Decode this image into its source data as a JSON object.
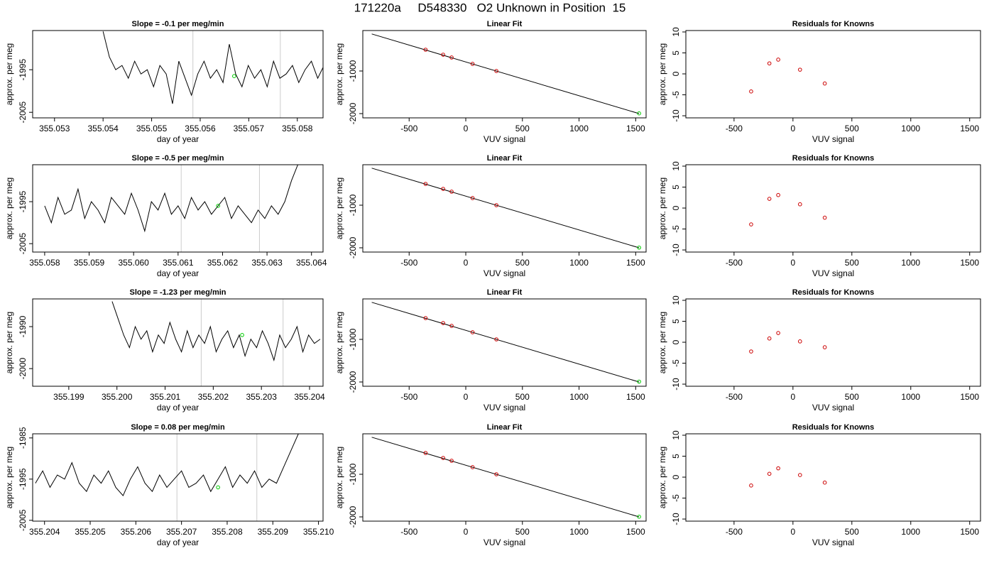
{
  "title": "171220a     D548330   O2 Unknown in Position  15",
  "chart_data": [
    {
      "type": "line",
      "title": "Slope =  -0.1  per meg/min",
      "xlabel": "day of year",
      "ylabel": "approx. per meg",
      "xlim": [
        355.05255,
        355.05853
      ],
      "ylim": [
        -2006.3,
        -1985.8
      ],
      "xticks": [
        355.053,
        355.054,
        355.055,
        355.056,
        355.057,
        355.058
      ],
      "yticks": [
        -2005,
        -1995
      ],
      "vlines": [
        355.05585,
        355.05765
      ],
      "vline_color": "#cccccc",
      "x": [
        355.054,
        355.05413,
        355.05426,
        355.05439,
        355.05452,
        355.05465,
        355.05478,
        355.05491,
        355.05504,
        355.05517,
        355.0553,
        355.05543,
        355.05556,
        355.05569,
        355.05582,
        355.05595,
        355.05608,
        355.05621,
        355.05634,
        355.05647,
        355.0566,
        355.05673,
        355.05686,
        355.05699,
        355.05712,
        355.05725,
        355.05738,
        355.05751,
        355.05764,
        355.05777,
        355.0579,
        355.05803,
        355.05816,
        355.05829,
        355.05842,
        355.05855,
        355.05868
      ],
      "series": [
        {
          "color": "#000000",
          "style": "line",
          "values": [
            -1986,
            -1992,
            -1995,
            -1994,
            -1997,
            -1993,
            -1996,
            -1995,
            -1999,
            -1994,
            -1996,
            -2003,
            -1993,
            -1997,
            -2001,
            -1996,
            -1993,
            -1997,
            -1995,
            -1998,
            -1989,
            -1996,
            -1999,
            -1994,
            -1997,
            -1995,
            -1999,
            -1993,
            -1997,
            -1996,
            -1994,
            -1998,
            -1995,
            -1993,
            -1997,
            -1994,
            -1996
          ]
        },
        {
          "color": "#00cc00",
          "style": "points",
          "x": [
            355.0567
          ],
          "values": [
            -1996.5
          ]
        }
      ]
    },
    {
      "type": "scatter",
      "title": "Linear Fit",
      "xlabel": "VUV signal",
      "ylabel": "approx. per meg",
      "xlim": [
        -909,
        1592
      ],
      "ylim": [
        -2100,
        -50
      ],
      "xticks": [
        -500,
        0,
        500,
        1000,
        1500
      ],
      "yticks": [
        -2000,
        -1000
      ],
      "series": [
        {
          "color": "#000000",
          "style": "line",
          "x": [
            -830,
            1530
          ],
          "values": [
            -130,
            -2000
          ]
        },
        {
          "color": "#cc0000",
          "style": "points",
          "x": [
            -355,
            -200,
            -125,
            60,
            270
          ],
          "values": [
            -500,
            -617,
            -683,
            -833,
            -1000
          ]
        },
        {
          "color": "#00cc00",
          "style": "points",
          "x": [
            1530
          ],
          "values": [
            -1995
          ]
        }
      ]
    },
    {
      "type": "scatter",
      "title": "Residuals for Knowns",
      "xlabel": "VUV signal",
      "ylabel": "approx. per meg",
      "xlim": [
        -909,
        1592
      ],
      "ylim": [
        -10.5,
        10.34
      ],
      "xticks": [
        -500,
        0,
        500,
        1000,
        1500
      ],
      "yticks": [
        -10,
        -5,
        0,
        5,
        10
      ],
      "series": [
        {
          "color": "#cc0000",
          "style": "points",
          "x": [
            -355,
            -200,
            -125,
            60,
            270
          ],
          "values": [
            -4.2,
            2.5,
            3.4,
            1,
            -2.3
          ]
        }
      ]
    },
    {
      "type": "line",
      "title": "Slope =  -0.5  per meg/min",
      "xlabel": "day of year",
      "ylabel": "approx. per meg",
      "xlim": [
        355.05773,
        355.06426
      ],
      "ylim": [
        -2007.0,
        -1986.2
      ],
      "xticks": [
        355.058,
        355.059,
        {
          "value": 355.06,
          "label": "355.060"
        },
        355.061,
        355.062,
        355.063,
        355.064
      ],
      "yticks": [
        -2005,
        -1995
      ],
      "vlines": [
        355.06107,
        355.06283
      ],
      "vline_color": "#cccccc",
      "x": [
        355.058,
        355.05815,
        355.0583,
        355.05845,
        355.0586,
        355.05875,
        355.0589,
        355.05905,
        355.0592,
        355.05935,
        355.0595,
        355.05965,
        355.0598,
        355.05995,
        355.0601,
        355.06025,
        355.0604,
        355.06055,
        355.0607,
        355.06085,
        355.061,
        355.06115,
        355.0613,
        355.06145,
        355.0616,
        355.06175,
        355.0619,
        355.06205,
        355.0622,
        355.06235,
        355.0625,
        355.06265,
        355.0628,
        355.06295,
        355.0631,
        355.06325,
        355.0634,
        355.06355,
        355.0637
      ],
      "series": [
        {
          "color": "#000000",
          "style": "line",
          "values": [
            -1996,
            -2000,
            -1994,
            -1998,
            -1997,
            -1992,
            -1999,
            -1995,
            -1997,
            -2000,
            -1994,
            -1996,
            -1998,
            -1993,
            -1997,
            -2002,
            -1995,
            -1997,
            -1993,
            -1998,
            -1996,
            -1999,
            -1994,
            -1997,
            -1995,
            -1998,
            -1996,
            -1994,
            -1999,
            -1996,
            -1998,
            -2000,
            -1997,
            -1999,
            -1996,
            -1998,
            -1995,
            -1990,
            -1986
          ]
        },
        {
          "color": "#00cc00",
          "style": "points",
          "x": [
            355.0619
          ],
          "values": [
            -1996
          ]
        }
      ]
    },
    {
      "type": "scatter",
      "title": "Linear Fit",
      "xlabel": "VUV signal",
      "ylabel": "approx. per meg",
      "xlim": [
        -909,
        1592
      ],
      "ylim": [
        -2100,
        -50
      ],
      "xticks": [
        -500,
        0,
        500,
        1000,
        1500
      ],
      "yticks": [
        -2000,
        -1000
      ],
      "series": [
        {
          "color": "#000000",
          "style": "line",
          "x": [
            -830,
            1530
          ],
          "values": [
            -130,
            -2000
          ]
        },
        {
          "color": "#cc0000",
          "style": "points",
          "x": [
            -355,
            -200,
            -125,
            60,
            270
          ],
          "values": [
            -500,
            -617,
            -683,
            -833,
            -1000
          ]
        },
        {
          "color": "#00cc00",
          "style": "points",
          "x": [
            1530
          ],
          "values": [
            -1996
          ]
        }
      ]
    },
    {
      "type": "scatter",
      "title": "Residuals for Knowns",
      "xlabel": "VUV signal",
      "ylabel": "approx. per meg",
      "xlim": [
        -909,
        1592
      ],
      "ylim": [
        -10.5,
        10.34
      ],
      "xticks": [
        -500,
        0,
        500,
        1000,
        1500
      ],
      "yticks": [
        -10,
        -5,
        0,
        5,
        10
      ],
      "series": [
        {
          "color": "#cc0000",
          "style": "points",
          "x": [
            -355,
            -200,
            -125,
            60,
            270
          ],
          "values": [
            -3.9,
            2.2,
            3.1,
            0.9,
            -2.3
          ]
        }
      ]
    },
    {
      "type": "line",
      "title": "Slope =  -1.23  per meg/min",
      "xlabel": "day of year",
      "ylabel": "approx. per meg",
      "xlim": [
        355.19825,
        355.20428
      ],
      "ylim": [
        -2004.2,
        -1983.4
      ],
      "xticks": [
        355.199,
        {
          "value": 355.2,
          "label": "355.200"
        },
        355.201,
        355.202,
        355.203,
        355.204
      ],
      "yticks": [
        -2000,
        -1990
      ],
      "vlines": [
        355.20175,
        355.20345
      ],
      "vline_color": "#cccccc",
      "x": [
        355.1999,
        355.20002,
        355.20014,
        355.20026,
        355.20038,
        355.2005,
        355.20062,
        355.20074,
        355.20086,
        355.20098,
        355.2011,
        355.20122,
        355.20134,
        355.20146,
        355.20158,
        355.2017,
        355.20182,
        355.20194,
        355.20206,
        355.20218,
        355.2023,
        355.20242,
        355.20254,
        355.20266,
        355.20278,
        355.2029,
        355.20302,
        355.20314,
        355.20326,
        355.20338,
        355.2035,
        355.20362,
        355.20374,
        355.20386,
        355.20398,
        355.2041,
        355.20422
      ],
      "series": [
        {
          "color": "#000000",
          "style": "line",
          "values": [
            -1984,
            -1988,
            -1992,
            -1995,
            -1990,
            -1993,
            -1991,
            -1996,
            -1992,
            -1994,
            -1989,
            -1993,
            -1996,
            -1991,
            -1995,
            -1992,
            -1994,
            -1990,
            -1996,
            -1993,
            -1991,
            -1995,
            -1992,
            -1997,
            -1993,
            -1995,
            -1991,
            -1994,
            -1998,
            -1992,
            -1995,
            -1993,
            -1990,
            -1996,
            -1992,
            -1994,
            -1993
          ]
        },
        {
          "color": "#00cc00",
          "style": "points",
          "x": [
            355.2026
          ],
          "values": [
            -1992
          ]
        }
      ]
    },
    {
      "type": "scatter",
      "title": "Linear Fit",
      "xlabel": "VUV signal",
      "ylabel": "approx. per meg",
      "xlim": [
        -909,
        1592
      ],
      "ylim": [
        -2100,
        -50
      ],
      "xticks": [
        -500,
        0,
        500,
        1000,
        1500
      ],
      "yticks": [
        -2000,
        -1000
      ],
      "series": [
        {
          "color": "#000000",
          "style": "line",
          "x": [
            -830,
            1530
          ],
          "values": [
            -130,
            -2000
          ]
        },
        {
          "color": "#cc0000",
          "style": "points",
          "x": [
            -355,
            -200,
            -125,
            60,
            270
          ],
          "values": [
            -500,
            -617,
            -683,
            -833,
            -1000
          ]
        },
        {
          "color": "#00cc00",
          "style": "points",
          "x": [
            1530
          ],
          "values": [
            -1992
          ]
        }
      ]
    },
    {
      "type": "scatter",
      "title": "Residuals for Knowns",
      "xlabel": "VUV signal",
      "ylabel": "approx. per meg",
      "xlim": [
        -909,
        1592
      ],
      "ylim": [
        -10.5,
        10.34
      ],
      "xticks": [
        -500,
        0,
        500,
        1000,
        1500
      ],
      "yticks": [
        -10,
        -5,
        0,
        5,
        10
      ],
      "series": [
        {
          "color": "#cc0000",
          "style": "points",
          "x": [
            -355,
            -200,
            -125,
            60,
            270
          ],
          "values": [
            -2.2,
            0.9,
            2.2,
            0.2,
            -1.2
          ]
        }
      ]
    },
    {
      "type": "line",
      "title": "Slope =  0.08  per meg/min",
      "xlabel": "day of year",
      "ylabel": "approx. per meg",
      "xlim": [
        355.20374,
        355.2101
      ],
      "ylim": [
        -2005.2,
        -1984.0
      ],
      "xticks": [
        355.204,
        355.205,
        355.206,
        355.207,
        355.208,
        355.209,
        {
          "value": 355.21,
          "label": "355.210"
        }
      ],
      "yticks": [
        -2005,
        -1995,
        -1985
      ],
      "vlines": [
        355.2069,
        355.20865
      ],
      "vline_color": "#cccccc",
      "x": [
        355.2038,
        355.20396,
        355.20412,
        355.20428,
        355.20444,
        355.2046,
        355.20476,
        355.20492,
        355.20508,
        355.20524,
        355.2054,
        355.20556,
        355.20572,
        355.20588,
        355.20604,
        355.2062,
        355.20636,
        355.20652,
        355.20668,
        355.20684,
        355.207,
        355.20716,
        355.20732,
        355.20748,
        355.20764,
        355.2078,
        355.20796,
        355.20812,
        355.20828,
        355.20844,
        355.2086,
        355.20876,
        355.20892,
        355.20908,
        355.20924,
        355.2094,
        355.20956
      ],
      "series": [
        {
          "color": "#000000",
          "style": "line",
          "values": [
            -1996,
            -1993,
            -1997,
            -1994,
            -1995,
            -1991,
            -1996,
            -1998,
            -1994,
            -1996,
            -1993,
            -1997,
            -1999,
            -1995,
            -1992,
            -1996,
            -1998,
            -1994,
            -1997,
            -1995,
            -1993,
            -1997,
            -1996,
            -1994,
            -1998,
            -1995,
            -1992,
            -1997,
            -1994,
            -1996,
            -1993,
            -1997,
            -1995,
            -1996,
            -1992,
            -1988,
            -1984
          ]
        },
        {
          "color": "#00cc00",
          "style": "points",
          "x": [
            355.2078
          ],
          "values": [
            -1997
          ]
        }
      ]
    },
    {
      "type": "scatter",
      "title": "Linear Fit",
      "xlabel": "VUV signal",
      "ylabel": "approx. per meg",
      "xlim": [
        -909,
        1592
      ],
      "ylim": [
        -2100,
        -50
      ],
      "xticks": [
        -500,
        0,
        500,
        1000,
        1500
      ],
      "yticks": [
        -2000,
        -1000
      ],
      "series": [
        {
          "color": "#000000",
          "style": "line",
          "x": [
            -830,
            1530
          ],
          "values": [
            -130,
            -2000
          ]
        },
        {
          "color": "#cc0000",
          "style": "points",
          "x": [
            -355,
            -200,
            -125,
            60,
            270
          ],
          "values": [
            -500,
            -617,
            -683,
            -833,
            -1000
          ]
        },
        {
          "color": "#00cc00",
          "style": "points",
          "x": [
            1530
          ],
          "values": [
            -1997
          ]
        }
      ]
    },
    {
      "type": "scatter",
      "title": "Residuals for Knowns",
      "xlabel": "VUV signal",
      "ylabel": "approx. per meg",
      "xlim": [
        -909,
        1592
      ],
      "ylim": [
        -10.5,
        10.34
      ],
      "xticks": [
        -500,
        0,
        500,
        1000,
        1500
      ],
      "yticks": [
        -10,
        -5,
        0,
        5,
        10
      ],
      "series": [
        {
          "color": "#cc0000",
          "style": "points",
          "x": [
            -355,
            -200,
            -125,
            60,
            270
          ],
          "values": [
            -2,
            0.8,
            2.1,
            0.5,
            -1.3
          ]
        }
      ]
    }
  ]
}
